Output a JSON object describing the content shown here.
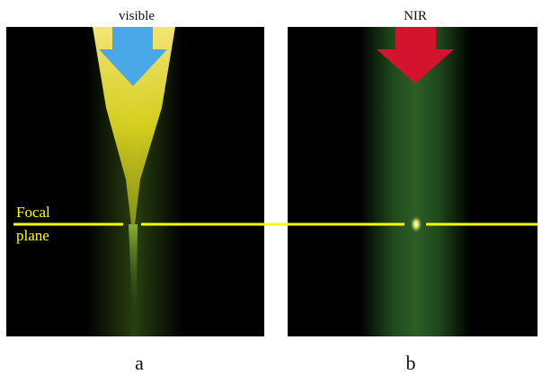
{
  "panels": [
    {
      "title": "visible",
      "label": "a"
    },
    {
      "title": "NIR",
      "label": "b"
    }
  ],
  "annotation": {
    "line1": "Focal",
    "line2": "plane"
  }
}
